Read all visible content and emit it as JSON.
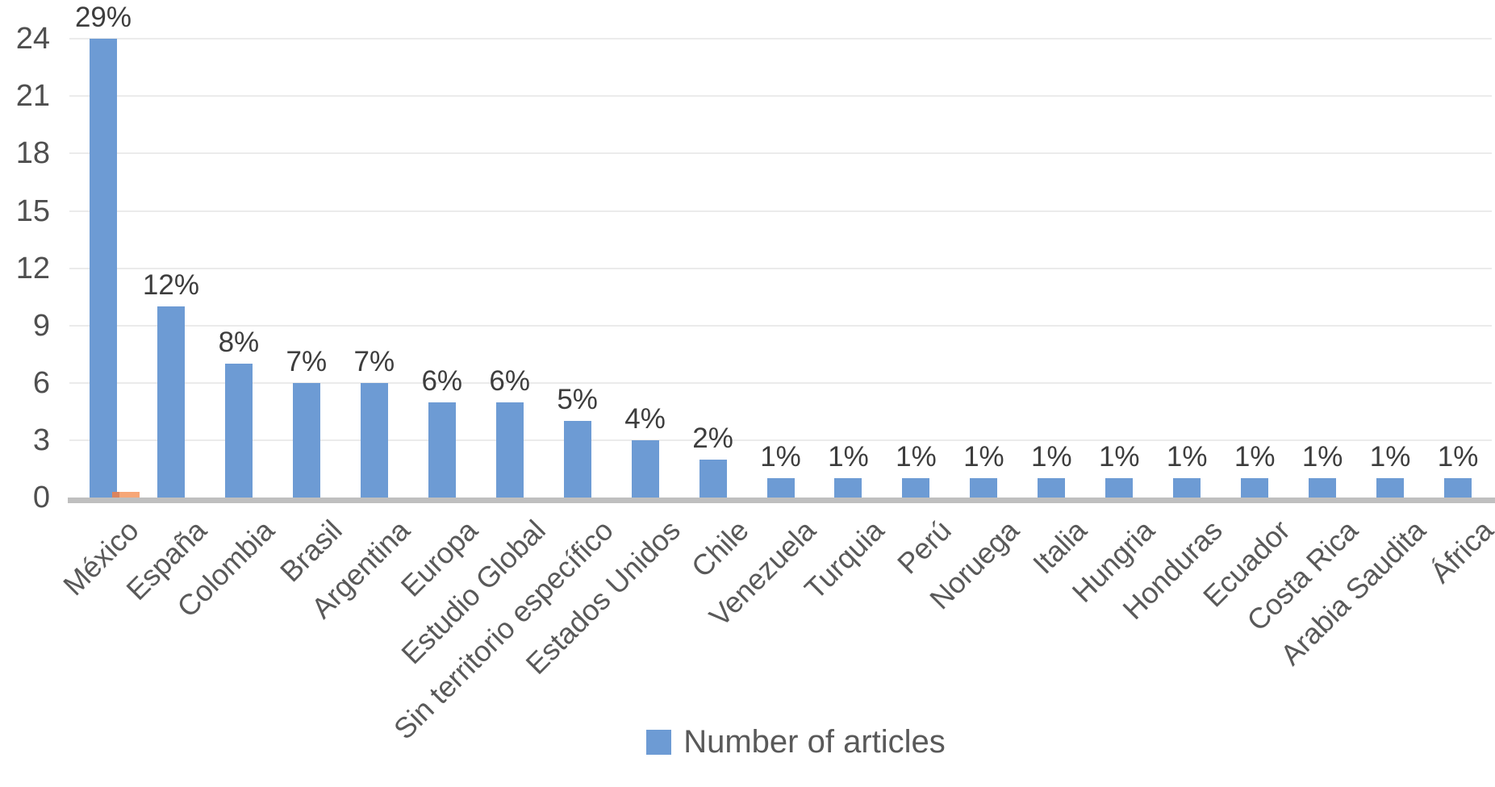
{
  "chart_data": {
    "type": "bar",
    "title": "",
    "categories": [
      "México",
      "España",
      "Colombia",
      "Brasil",
      "Argentina",
      "Europa",
      "Estudio Global",
      "Sin territorio específico",
      "Estados Unidos",
      "Chile",
      "Venezuela",
      "Turquia",
      "Perú",
      "Noruega",
      "Italia",
      "Hungria",
      "Honduras",
      "Ecuador",
      "Costa Rica",
      "Arabia Saudita",
      "África"
    ],
    "series": [
      {
        "name": "Number of articles",
        "color": "#6d9bd4",
        "values": [
          24,
          10,
          7,
          6,
          6,
          5,
          5,
          4,
          3,
          2,
          1,
          1,
          1,
          1,
          1,
          1,
          1,
          1,
          1,
          1,
          1
        ],
        "data_labels": [
          "29%",
          "12%",
          "8%",
          "7%",
          "7%",
          "6%",
          "6%",
          "5%",
          "4%",
          "2%",
          "1%",
          "1%",
          "1%",
          "1%",
          "1%",
          "1%",
          "1%",
          "1%",
          "1%",
          "1%",
          "1%"
        ]
      }
    ],
    "secondary_bar": {
      "category": "México",
      "category_index": 0,
      "approx_value": 0.3,
      "color": "#f6a677",
      "color_dark": "#db845e"
    },
    "xlabel": "",
    "ylabel": "",
    "y_ticks": [
      0,
      3,
      6,
      9,
      12,
      15,
      18,
      21,
      24
    ],
    "ylim": [
      0,
      24
    ],
    "grid": true,
    "x_label_rotation_deg": 45,
    "legend": {
      "position": "bottom",
      "entries": [
        "Number of articles"
      ]
    }
  },
  "colors": {
    "bar_blue": "#6d9bd4",
    "bar_orange": "#f6a677",
    "bar_orange_dark": "#db845e",
    "gridline": "#ebebeb",
    "axis_line": "#bfbfbf",
    "tick_text": "#4f4f4f",
    "data_label_text": "#3d3d3d",
    "x_label_text": "#595959",
    "legend_text": "#595959",
    "background": "#ffffff"
  }
}
